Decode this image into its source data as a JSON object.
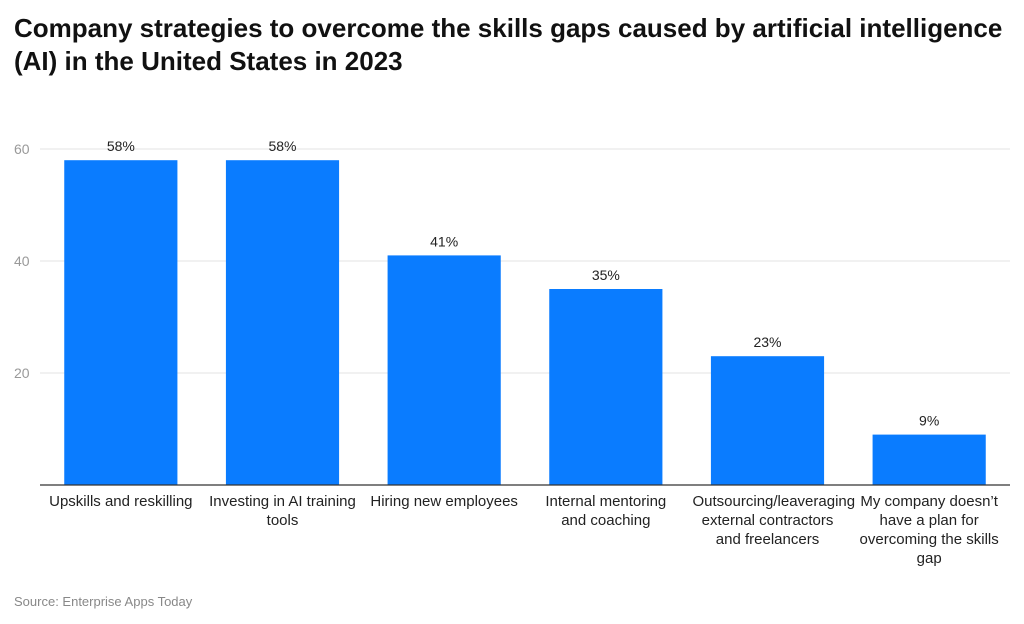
{
  "chart_data": {
    "type": "bar",
    "title": "Company strategies to overcome the skills gaps caused by artificial intelligence (AI) in the United States in 2023",
    "categories": [
      "Upskills and reskilling",
      "Investing in AI training tools",
      "Hiring new employees",
      "Internal mentoring and coaching",
      "Outsourcing/leaveraging external contractors and freelancers",
      "My company doesn’t have a plan for overcoming the skills gap"
    ],
    "values": [
      58,
      58,
      41,
      35,
      23,
      9
    ],
    "value_labels": [
      "58%",
      "58%",
      "41%",
      "35%",
      "23%",
      "9%"
    ],
    "color": "#0a7cff",
    "ylim": [
      0,
      60
    ],
    "yticks": [
      20,
      40,
      60
    ],
    "grid": true,
    "source": "Source: Enterprise Apps Today"
  }
}
